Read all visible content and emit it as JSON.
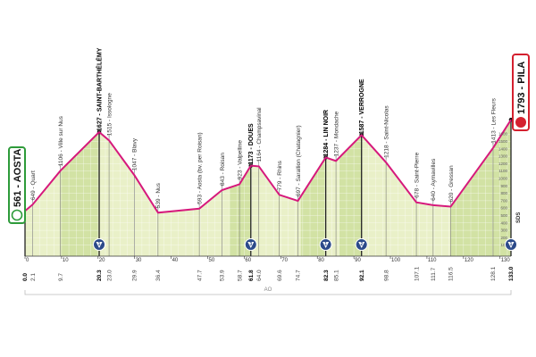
{
  "chart_data": {
    "type": "area",
    "start": {
      "label": "561 - AOSTA",
      "elevation": 561,
      "color": "#2e9b3a"
    },
    "finish": {
      "label": "1793 - PILA",
      "elevation": 1793,
      "color": "#d4202f"
    },
    "line_color": "#d6197c",
    "fill_color": "#e9f0c8",
    "climb_fill_color": "#d2e2a4",
    "xlim": [
      0,
      133
    ],
    "ylim": [
      0,
      1800
    ],
    "x_ticks": [
      0,
      10,
      20,
      30,
      40,
      50,
      60,
      70,
      80,
      90,
      100,
      110,
      120,
      130
    ],
    "y_ticks": [
      100,
      200,
      300,
      400,
      500,
      600,
      700,
      800,
      900,
      1000,
      1100,
      1200,
      1300,
      1400,
      1500,
      1600
    ],
    "points": [
      {
        "km": 0.0,
        "km_label": "0.0",
        "elev": 561,
        "label": "",
        "major": true
      },
      {
        "km": 2.1,
        "km_label": "2.1",
        "elev": 649,
        "label": "649 - Quart",
        "major": false
      },
      {
        "km": 9.7,
        "km_label": "9.7",
        "elev": 1106,
        "label": "1106 - Ville sur Nus",
        "major": false
      },
      {
        "km": 20.3,
        "km_label": "20.3",
        "elev": 1627,
        "label": "1627 - SAINT-BARTHÉLÉMY",
        "major": true,
        "category": "1"
      },
      {
        "km": 23.0,
        "km_label": "23.0",
        "elev": 1515,
        "label": "1515 - Issologne",
        "major": false
      },
      {
        "km": 29.9,
        "km_label": "29.9",
        "elev": 1047,
        "label": "1047 - Blavy",
        "major": false
      },
      {
        "km": 36.4,
        "km_label": "36.4",
        "elev": 539,
        "label": "539 - Nus",
        "major": false
      },
      {
        "km": 47.7,
        "km_label": "47.7",
        "elev": 593,
        "label": "593 - Aosta (bv. per Roisan)",
        "major": false
      },
      {
        "km": 53.9,
        "km_label": "53.9",
        "elev": 843,
        "label": "843 - Roisan",
        "major": false
      },
      {
        "km": 58.7,
        "km_label": "58.7",
        "elev": 923,
        "label": "923 - Valpelline",
        "major": false
      },
      {
        "km": 61.8,
        "km_label": "61.8",
        "elev": 1173,
        "label": "1173 - DOUES",
        "major": true,
        "category": "3"
      },
      {
        "km": 64.0,
        "km_label": "64.0",
        "elev": 1164,
        "label": "1164 - Champsavinal",
        "major": false
      },
      {
        "km": 69.6,
        "km_label": "69.6",
        "elev": 779,
        "label": "779 - Rhins",
        "major": false
      },
      {
        "km": 74.7,
        "km_label": "74.7",
        "elev": 697,
        "label": "697 - Sarallion (Chatagnier)",
        "major": false
      },
      {
        "km": 82.3,
        "km_label": "82.3",
        "elev": 1284,
        "label": "1284 - LIN NOIR",
        "major": true,
        "category": "1"
      },
      {
        "km": 85.1,
        "km_label": "85.1",
        "elev": 1237,
        "label": "1237 - Mondache",
        "major": false
      },
      {
        "km": 92.1,
        "km_label": "92.1",
        "elev": 1587,
        "label": "1587 - VERROGNE",
        "major": true,
        "category": "2"
      },
      {
        "km": 98.8,
        "km_label": "98.8",
        "elev": 1218,
        "label": "1218 - Saint-Nicolas",
        "major": false
      },
      {
        "km": 107.1,
        "km_label": "107.1",
        "elev": 678,
        "label": "678 - Saint-Pierre",
        "major": false
      },
      {
        "km": 111.7,
        "km_label": "111.7",
        "elev": 640,
        "label": "640 - Aymavilles",
        "major": false
      },
      {
        "km": 116.5,
        "km_label": "116.5",
        "elev": 620,
        "label": "620 - Gressan",
        "major": false
      },
      {
        "km": 128.1,
        "km_label": "128.1",
        "elev": 1413,
        "label": "1413 - Les Fleurs",
        "major": false
      },
      {
        "km": 133.0,
        "km_label": "133.0",
        "elev": 1793,
        "label": "",
        "major": true,
        "category": "1"
      }
    ],
    "climbs": [
      [
        9.7,
        20.3
      ],
      [
        56.0,
        61.8
      ],
      [
        75.5,
        82.3
      ],
      [
        86.0,
        92.1
      ],
      [
        116.5,
        133.0
      ]
    ],
    "province_label": "AO",
    "brand_label": "SDS"
  }
}
